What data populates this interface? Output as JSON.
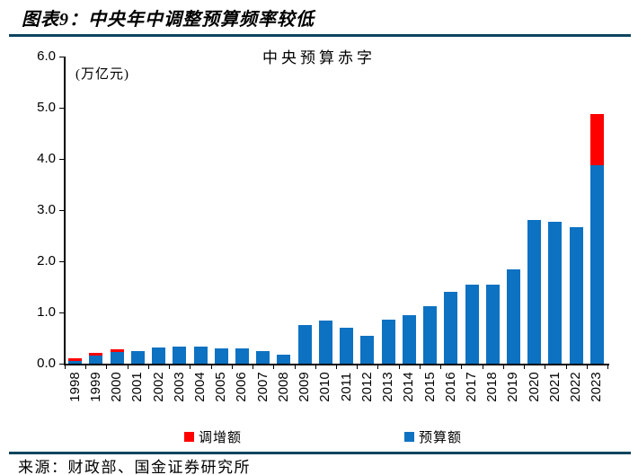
{
  "figure": {
    "label": "图表9：中央年中调整预算频率较低"
  },
  "source": {
    "text": "来源：财政部、国金证券研究所"
  },
  "colors": {
    "rule": "#0C455E",
    "budget_blue": "#0D72C2",
    "increase_red": "#FF0000",
    "axis": "#000000"
  },
  "legend": {
    "items": [
      {
        "label": "调增额",
        "color": "#FF0000"
      },
      {
        "label": "预算额",
        "color": "#0D72C2"
      }
    ]
  },
  "chart_data": {
    "type": "bar",
    "stacked": true,
    "title": "中央预算赤字",
    "unit_label": "(万亿元)",
    "xlabel": "",
    "ylabel": "万亿元",
    "ylim": [
      0,
      6.0
    ],
    "ytick_step": 1.0,
    "ytick_labels": [
      "0.0",
      "1.0",
      "2.0",
      "3.0",
      "4.0",
      "5.0",
      "6.0"
    ],
    "grid": false,
    "legend_position": "bottom",
    "categories": [
      "1998",
      "1999",
      "2000",
      "2001",
      "2002",
      "2003",
      "2004",
      "2005",
      "2006",
      "2007",
      "2008",
      "2009",
      "2010",
      "2011",
      "2012",
      "2013",
      "2014",
      "2015",
      "2016",
      "2017",
      "2018",
      "2019",
      "2020",
      "2021",
      "2022",
      "2023"
    ],
    "series": [
      {
        "name": "预算额",
        "color": "#0D72C2",
        "values": [
          0.05,
          0.15,
          0.22,
          0.25,
          0.31,
          0.33,
          0.33,
          0.3,
          0.3,
          0.24,
          0.18,
          0.75,
          0.85,
          0.7,
          0.55,
          0.86,
          0.95,
          1.12,
          1.41,
          1.55,
          1.55,
          1.84,
          2.8,
          2.77,
          2.67,
          3.88
        ]
      },
      {
        "name": "调增额",
        "color": "#FF0000",
        "values": [
          0.05,
          0.06,
          0.06,
          0,
          0,
          0,
          0,
          0,
          0,
          0,
          0,
          0,
          0,
          0,
          0,
          0,
          0,
          0,
          0,
          0,
          0,
          0,
          0,
          0,
          0,
          1.0
        ]
      }
    ]
  }
}
